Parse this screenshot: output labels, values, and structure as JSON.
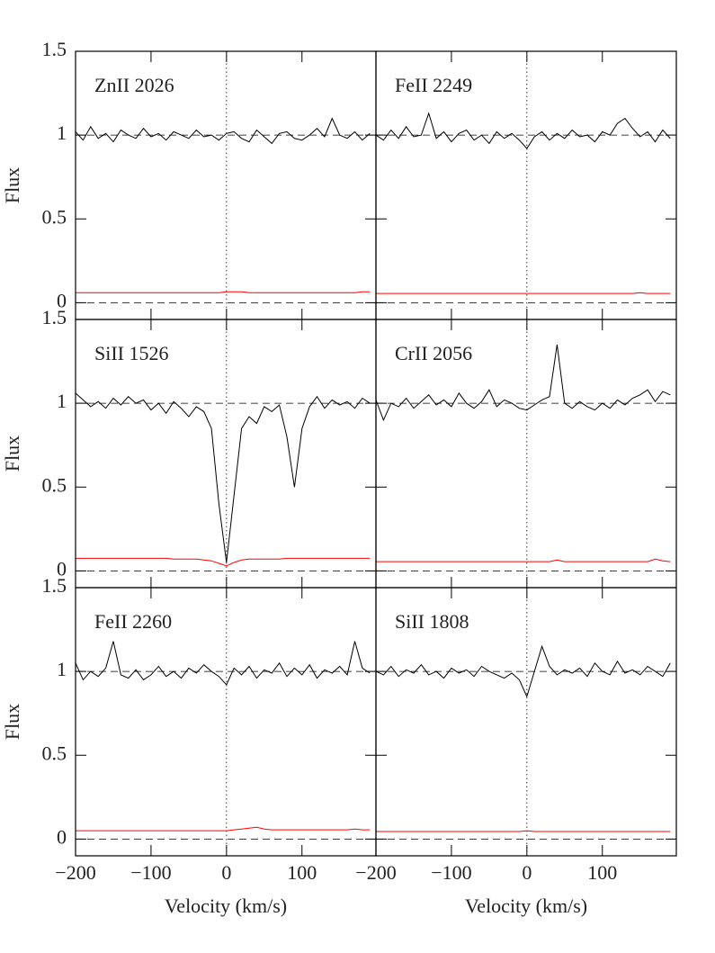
{
  "chart_data": [
    {
      "type": "line",
      "title": "ZnII 2026",
      "ylabel": "Flux",
      "ytick_labels": true,
      "xtick_labels": false,
      "x": [
        -200,
        -190,
        -180,
        -170,
        -160,
        -150,
        -140,
        -130,
        -120,
        -110,
        -100,
        -90,
        -80,
        -70,
        -60,
        -50,
        -40,
        -30,
        -20,
        -10,
        0,
        10,
        20,
        30,
        40,
        50,
        60,
        70,
        80,
        90,
        100,
        110,
        120,
        130,
        140,
        150,
        160,
        170,
        180,
        190
      ],
      "series": [
        {
          "name": "Flux",
          "color": "#000000",
          "values": [
            1.02,
            0.97,
            1.05,
            0.98,
            1.01,
            0.96,
            1.03,
            1.0,
            0.98,
            1.04,
            0.99,
            1.01,
            0.97,
            1.02,
            1.0,
            0.98,
            1.03,
            0.99,
            1.0,
            0.97,
            1.01,
            1.02,
            0.98,
            0.96,
            1.03,
            0.99,
            0.95,
            1.01,
            1.02,
            0.98,
            0.97,
            1.0,
            1.04,
            0.99,
            1.1,
            1.0,
            0.98,
            1.02,
            0.97,
            1.01
          ]
        },
        {
          "name": "Error",
          "color": "#ff0000",
          "values": [
            0.06,
            0.06,
            0.06,
            0.06,
            0.06,
            0.06,
            0.06,
            0.06,
            0.06,
            0.06,
            0.06,
            0.06,
            0.06,
            0.06,
            0.06,
            0.06,
            0.06,
            0.06,
            0.06,
            0.06,
            0.065,
            0.065,
            0.065,
            0.06,
            0.06,
            0.06,
            0.06,
            0.06,
            0.06,
            0.06,
            0.06,
            0.06,
            0.06,
            0.06,
            0.06,
            0.06,
            0.06,
            0.06,
            0.065,
            0.065
          ]
        }
      ],
      "xlim": [
        -200,
        198
      ],
      "ylim": [
        -0.1,
        1.5
      ],
      "xticks": [
        {
          "value": -200,
          "label": "−200"
        },
        {
          "value": -100,
          "label": "−100"
        },
        0,
        100
      ],
      "yticks": [
        0,
        0.5,
        1,
        1.5
      ],
      "reference_y": [
        0,
        1
      ],
      "reference_x": 0
    },
    {
      "type": "line",
      "title": "FeII 2249",
      "ytick_labels": false,
      "xtick_labels": false,
      "x": [
        -200,
        -190,
        -180,
        -170,
        -160,
        -150,
        -140,
        -130,
        -120,
        -110,
        -100,
        -90,
        -80,
        -70,
        -60,
        -50,
        -40,
        -30,
        -20,
        -10,
        0,
        10,
        20,
        30,
        40,
        50,
        60,
        70,
        80,
        90,
        100,
        110,
        120,
        130,
        140,
        150,
        160,
        170,
        180,
        190
      ],
      "series": [
        {
          "name": "Flux",
          "color": "#000000",
          "values": [
            1.0,
            0.97,
            1.03,
            0.98,
            1.05,
            0.99,
            1.0,
            1.13,
            0.98,
            1.02,
            0.96,
            1.01,
            1.03,
            0.97,
            1.0,
            0.95,
            1.02,
            0.98,
            1.01,
            0.97,
            0.92,
            0.99,
            1.02,
            0.97,
            1.01,
            0.98,
            1.03,
            0.99,
            1.0,
            0.96,
            1.02,
            1.0,
            1.07,
            1.1,
            1.04,
            0.99,
            1.02,
            0.96,
            1.03,
            0.98
          ]
        },
        {
          "name": "Error",
          "color": "#ff0000",
          "values": [
            0.055,
            0.055,
            0.055,
            0.055,
            0.055,
            0.055,
            0.055,
            0.055,
            0.055,
            0.055,
            0.055,
            0.055,
            0.055,
            0.055,
            0.055,
            0.055,
            0.055,
            0.055,
            0.055,
            0.055,
            0.055,
            0.055,
            0.055,
            0.055,
            0.055,
            0.055,
            0.055,
            0.055,
            0.055,
            0.055,
            0.055,
            0.055,
            0.055,
            0.055,
            0.055,
            0.06,
            0.055,
            0.055,
            0.055,
            0.055
          ]
        }
      ],
      "xlim": [
        -200,
        198
      ],
      "ylim": [
        -0.1,
        1.5
      ],
      "xticks": [
        {
          "value": -200,
          "label": "−200"
        },
        {
          "value": -100,
          "label": "−100"
        },
        0,
        100
      ],
      "yticks": [
        0,
        0.5,
        1,
        1.5
      ],
      "reference_y": [
        0,
        1
      ],
      "reference_x": 0
    },
    {
      "type": "line",
      "title": "SiII 1526",
      "ylabel": "Flux",
      "ytick_labels": true,
      "xtick_labels": false,
      "x": [
        -200,
        -190,
        -180,
        -170,
        -160,
        -150,
        -140,
        -130,
        -120,
        -110,
        -100,
        -90,
        -80,
        -70,
        -60,
        -50,
        -40,
        -30,
        -20,
        -10,
        0,
        10,
        20,
        30,
        40,
        50,
        60,
        70,
        80,
        90,
        100,
        110,
        120,
        130,
        140,
        150,
        160,
        170,
        180,
        190
      ],
      "series": [
        {
          "name": "Flux",
          "color": "#000000",
          "values": [
            1.06,
            1.02,
            0.98,
            1.01,
            0.97,
            1.03,
            0.99,
            1.04,
            1.0,
            1.02,
            0.96,
            1.0,
            0.94,
            1.01,
            0.97,
            0.92,
            0.98,
            0.95,
            0.85,
            0.4,
            0.05,
            0.45,
            0.85,
            0.92,
            0.88,
            0.98,
            0.95,
            0.99,
            0.8,
            0.5,
            0.85,
            0.98,
            1.04,
            0.97,
            1.02,
            0.99,
            1.01,
            0.97,
            1.03,
            1.0
          ]
        },
        {
          "name": "Error",
          "color": "#ff0000",
          "values": [
            0.075,
            0.075,
            0.075,
            0.075,
            0.075,
            0.075,
            0.075,
            0.075,
            0.075,
            0.075,
            0.075,
            0.075,
            0.075,
            0.07,
            0.07,
            0.07,
            0.07,
            0.065,
            0.06,
            0.045,
            0.03,
            0.05,
            0.065,
            0.07,
            0.07,
            0.07,
            0.07,
            0.07,
            0.075,
            0.075,
            0.075,
            0.075,
            0.075,
            0.075,
            0.075,
            0.075,
            0.075,
            0.075,
            0.075,
            0.075
          ]
        }
      ],
      "xlim": [
        -200,
        198
      ],
      "ylim": [
        -0.1,
        1.5
      ],
      "xticks": [
        {
          "value": -200,
          "label": "−200"
        },
        {
          "value": -100,
          "label": "−100"
        },
        0,
        100
      ],
      "yticks": [
        0,
        0.5,
        1,
        1.5
      ],
      "reference_y": [
        0,
        1
      ],
      "reference_x": 0
    },
    {
      "type": "line",
      "title": "CrII 2056",
      "ytick_labels": false,
      "xtick_labels": false,
      "x": [
        -200,
        -190,
        -180,
        -170,
        -160,
        -150,
        -140,
        -130,
        -120,
        -110,
        -100,
        -90,
        -80,
        -70,
        -60,
        -50,
        -40,
        -30,
        -20,
        -10,
        0,
        10,
        20,
        30,
        40,
        50,
        60,
        70,
        80,
        90,
        100,
        110,
        120,
        130,
        140,
        150,
        160,
        170,
        180,
        190
      ],
      "series": [
        {
          "name": "Flux",
          "color": "#000000",
          "values": [
            1.02,
            0.9,
            1.0,
            0.98,
            1.03,
            0.97,
            1.01,
            1.05,
            0.99,
            1.02,
            0.98,
            1.06,
            1.0,
            0.97,
            1.01,
            1.08,
            0.98,
            1.02,
            1.0,
            0.97,
            0.96,
            0.99,
            1.02,
            1.04,
            1.35,
            1.0,
            0.97,
            1.01,
            0.98,
            0.96,
            1.0,
            0.97,
            1.02,
            0.99,
            1.03,
            1.05,
            1.08,
            1.01,
            1.07,
            1.05
          ]
        },
        {
          "name": "Error",
          "color": "#ff0000",
          "values": [
            0.055,
            0.055,
            0.055,
            0.055,
            0.055,
            0.055,
            0.055,
            0.055,
            0.055,
            0.055,
            0.055,
            0.055,
            0.055,
            0.055,
            0.055,
            0.055,
            0.055,
            0.055,
            0.055,
            0.055,
            0.055,
            0.055,
            0.055,
            0.055,
            0.065,
            0.055,
            0.055,
            0.055,
            0.055,
            0.055,
            0.055,
            0.055,
            0.055,
            0.055,
            0.055,
            0.055,
            0.055,
            0.07,
            0.06,
            0.055
          ]
        }
      ],
      "xlim": [
        -200,
        198
      ],
      "ylim": [
        -0.1,
        1.5
      ],
      "xticks": [
        {
          "value": -200,
          "label": "−200"
        },
        {
          "value": -100,
          "label": "−100"
        },
        0,
        100
      ],
      "yticks": [
        0,
        0.5,
        1,
        1.5
      ],
      "reference_y": [
        0,
        1
      ],
      "reference_x": 0
    },
    {
      "type": "line",
      "title": "FeII 2260",
      "ylabel": "Flux",
      "xlabel": "Velocity (km/s)",
      "ytick_labels": true,
      "xtick_labels": true,
      "x": [
        -200,
        -190,
        -180,
        -170,
        -160,
        -150,
        -140,
        -130,
        -120,
        -110,
        -100,
        -90,
        -80,
        -70,
        -60,
        -50,
        -40,
        -30,
        -20,
        -10,
        0,
        10,
        20,
        30,
        40,
        50,
        60,
        70,
        80,
        90,
        100,
        110,
        120,
        130,
        140,
        150,
        160,
        170,
        180,
        190
      ],
      "series": [
        {
          "name": "Flux",
          "color": "#000000",
          "values": [
            1.05,
            0.95,
            1.0,
            0.97,
            1.02,
            1.18,
            0.98,
            0.96,
            1.01,
            0.95,
            0.98,
            1.03,
            0.97,
            1.0,
            0.96,
            1.02,
            0.99,
            1.04,
            1.0,
            0.97,
            0.92,
            1.02,
            0.98,
            1.03,
            0.96,
            1.01,
            0.99,
            1.05,
            0.97,
            1.02,
            0.98,
            1.04,
            0.96,
            1.01,
            0.99,
            1.03,
            0.98,
            1.18,
            1.02,
            0.99
          ]
        },
        {
          "name": "Error",
          "color": "#ff0000",
          "values": [
            0.05,
            0.05,
            0.05,
            0.05,
            0.05,
            0.05,
            0.05,
            0.05,
            0.05,
            0.05,
            0.05,
            0.05,
            0.05,
            0.05,
            0.05,
            0.05,
            0.05,
            0.05,
            0.05,
            0.05,
            0.05,
            0.055,
            0.06,
            0.065,
            0.07,
            0.06,
            0.055,
            0.055,
            0.055,
            0.055,
            0.055,
            0.055,
            0.055,
            0.055,
            0.055,
            0.055,
            0.055,
            0.06,
            0.055,
            0.055
          ]
        }
      ],
      "xlim": [
        -200,
        198
      ],
      "ylim": [
        -0.1,
        1.5
      ],
      "xticks": [
        {
          "value": -200,
          "label": "−200"
        },
        {
          "value": -100,
          "label": "−100"
        },
        0,
        100
      ],
      "yticks": [
        0,
        0.5,
        1,
        1.5
      ],
      "reference_y": [
        0,
        1
      ],
      "reference_x": 0
    },
    {
      "type": "line",
      "title": "SiII 1808",
      "xlabel": "Velocity (km/s)",
      "ytick_labels": false,
      "xtick_labels": true,
      "x": [
        -200,
        -190,
        -180,
        -170,
        -160,
        -150,
        -140,
        -130,
        -120,
        -110,
        -100,
        -90,
        -80,
        -70,
        -60,
        -50,
        -40,
        -30,
        -20,
        -10,
        0,
        10,
        20,
        30,
        40,
        50,
        60,
        70,
        80,
        90,
        100,
        110,
        120,
        130,
        140,
        150,
        160,
        170,
        180,
        190
      ],
      "series": [
        {
          "name": "Flux",
          "color": "#000000",
          "values": [
            1.0,
            0.98,
            1.03,
            0.97,
            1.01,
            0.99,
            1.04,
            0.98,
            1.0,
            0.96,
            1.02,
            0.99,
            1.01,
            0.97,
            1.03,
            1.0,
            0.98,
            0.96,
            0.99,
            0.95,
            0.85,
            1.0,
            1.15,
            1.03,
            0.98,
            1.01,
            0.99,
            1.02,
            0.97,
            1.05,
            1.0,
            0.98,
            1.06,
            0.99,
            1.01,
            0.98,
            1.03,
            1.0,
            0.97,
            1.05
          ]
        },
        {
          "name": "Error",
          "color": "#ff0000",
          "values": [
            0.045,
            0.045,
            0.045,
            0.045,
            0.045,
            0.045,
            0.045,
            0.045,
            0.045,
            0.045,
            0.045,
            0.045,
            0.045,
            0.045,
            0.045,
            0.045,
            0.045,
            0.045,
            0.045,
            0.045,
            0.05,
            0.045,
            0.045,
            0.045,
            0.045,
            0.045,
            0.045,
            0.045,
            0.045,
            0.045,
            0.045,
            0.045,
            0.045,
            0.045,
            0.045,
            0.045,
            0.045,
            0.045,
            0.045,
            0.045
          ]
        }
      ],
      "xlim": [
        -200,
        198
      ],
      "ylim": [
        -0.1,
        1.5
      ],
      "xticks": [
        {
          "value": -200,
          "label": "−200"
        },
        {
          "value": -100,
          "label": "−100"
        },
        0,
        100
      ],
      "yticks": [
        0,
        0.5,
        1,
        1.5
      ],
      "reference_y": [
        0,
        1
      ],
      "reference_x": 0
    }
  ]
}
